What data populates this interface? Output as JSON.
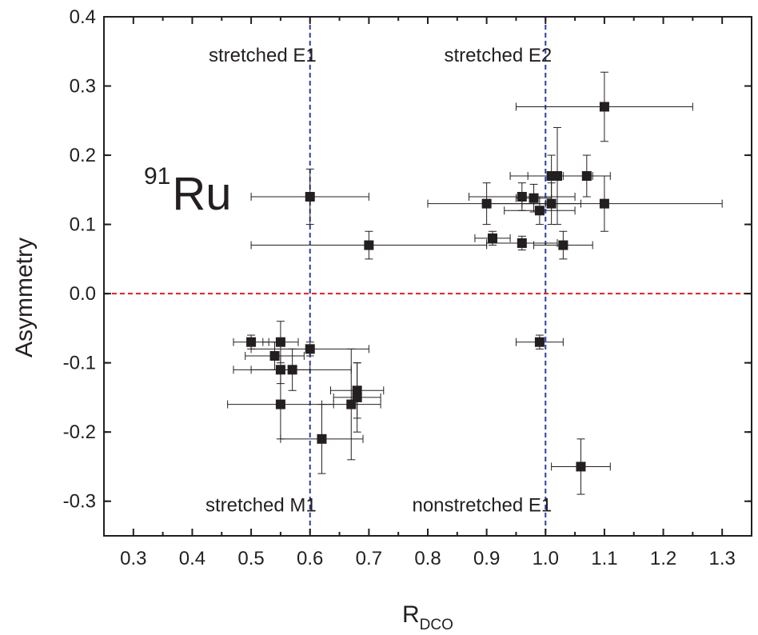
{
  "chart_data": {
    "type": "scatter",
    "title": "",
    "xlabel": "R",
    "xlabel_subscript": "DCO",
    "ylabel": "Asymmetry",
    "xlim": [
      0.25,
      1.35
    ],
    "ylim": [
      -0.35,
      0.4
    ],
    "x_ticks": [
      0.3,
      0.4,
      0.5,
      0.6,
      0.7,
      0.8,
      0.9,
      1.0,
      1.1,
      1.2,
      1.3
    ],
    "x_tick_labels": [
      "0.3",
      "0.4",
      "0.5",
      "0.6",
      "0.7",
      "0.8",
      "0.9",
      "1.0",
      "1.1",
      "1.2",
      "1.3"
    ],
    "y_ticks": [
      -0.3,
      -0.2,
      -0.1,
      0.0,
      0.1,
      0.2,
      0.3,
      0.4
    ],
    "y_tick_labels": [
      "-0.3",
      "-0.2",
      "-0.1",
      "0.0",
      "0.1",
      "0.2",
      "0.3",
      "0.4"
    ],
    "grid": false,
    "legend": null,
    "marker": "filled-square",
    "marker_color": "#231f20",
    "errorbar_color": "#231f20",
    "reference_lines": [
      {
        "orientation": "vertical",
        "value": 0.6,
        "style": "dashed",
        "color": "#2b3ea8"
      },
      {
        "orientation": "vertical",
        "value": 1.0,
        "style": "dashed",
        "color": "#2b3ea8"
      },
      {
        "orientation": "horizontal",
        "value": 0.0,
        "style": "dashed",
        "color": "#e02020"
      }
    ],
    "annotations": [
      {
        "text": "stretched E1",
        "x": 0.6,
        "y": 0.335,
        "anchor": "end"
      },
      {
        "text": "stretched E2",
        "x": 1.0,
        "y": 0.335,
        "anchor": "end"
      },
      {
        "text": "stretched M1",
        "x": 0.6,
        "y": -0.315,
        "anchor": "end"
      },
      {
        "text": "nonstretched E1",
        "x": 1.0,
        "y": -0.315,
        "anchor": "end"
      }
    ],
    "nuclide_label": {
      "mass": "91",
      "symbol": "Ru"
    },
    "points": [
      {
        "x": 1.1,
        "y": 0.27,
        "xerr": 0.15,
        "yerr": 0.05
      },
      {
        "x": 0.6,
        "y": 0.14,
        "xerr": 0.1,
        "yerr": 0.04
      },
      {
        "x": 0.7,
        "y": 0.07,
        "xerr": 0.2,
        "yerr": 0.02
      },
      {
        "x": 1.01,
        "y": 0.17,
        "xerr": 0.07,
        "yerr": 0.03
      },
      {
        "x": 1.02,
        "y": 0.17,
        "xerr": 0.05,
        "yerr": 0.07
      },
      {
        "x": 1.07,
        "y": 0.17,
        "xerr": 0.04,
        "yerr": 0.03
      },
      {
        "x": 0.9,
        "y": 0.13,
        "xerr": 0.1,
        "yerr": 0.03
      },
      {
        "x": 0.96,
        "y": 0.14,
        "xerr": 0.09,
        "yerr": 0.02
      },
      {
        "x": 0.98,
        "y": 0.138,
        "xerr": 0.03,
        "yerr": 0.02
      },
      {
        "x": 0.99,
        "y": 0.12,
        "xerr": 0.06,
        "yerr": 0.02
      },
      {
        "x": 1.01,
        "y": 0.13,
        "xerr": 0.05,
        "yerr": 0.03
      },
      {
        "x": 1.1,
        "y": 0.13,
        "xerr": 0.2,
        "yerr": 0.04
      },
      {
        "x": 0.91,
        "y": 0.08,
        "xerr": 0.03,
        "yerr": 0.01
      },
      {
        "x": 0.96,
        "y": 0.073,
        "xerr": 0.06,
        "yerr": 0.01
      },
      {
        "x": 1.03,
        "y": 0.07,
        "xerr": 0.05,
        "yerr": 0.02
      },
      {
        "x": 0.99,
        "y": -0.07,
        "xerr": 0.04,
        "yerr": 0.01
      },
      {
        "x": 1.06,
        "y": -0.25,
        "xerr": 0.05,
        "yerr": 0.04
      },
      {
        "x": 0.5,
        "y": -0.07,
        "xerr": 0.03,
        "yerr": 0.01
      },
      {
        "x": 0.55,
        "y": -0.07,
        "xerr": 0.03,
        "yerr": 0.03
      },
      {
        "x": 0.54,
        "y": -0.09,
        "xerr": 0.05,
        "yerr": 0.02
      },
      {
        "x": 0.6,
        "y": -0.08,
        "xerr": 0.1,
        "yerr": 0.01
      },
      {
        "x": 0.55,
        "y": -0.11,
        "xerr": 0.05,
        "yerr": 0.02
      },
      {
        "x": 0.57,
        "y": -0.11,
        "xerr": 0.1,
        "yerr": 0.03
      },
      {
        "x": 0.55,
        "y": -0.16,
        "xerr": 0.09,
        "yerr": 0.05
      },
      {
        "x": 0.68,
        "y": -0.14,
        "xerr": 0.045,
        "yerr": 0.04
      },
      {
        "x": 0.68,
        "y": -0.15,
        "xerr": 0.04,
        "yerr": 0.05
      },
      {
        "x": 0.67,
        "y": -0.16,
        "xerr": 0.05,
        "yerr": 0.08
      },
      {
        "x": 0.62,
        "y": -0.21,
        "xerr": 0.07,
        "yerr": 0.05
      }
    ]
  }
}
